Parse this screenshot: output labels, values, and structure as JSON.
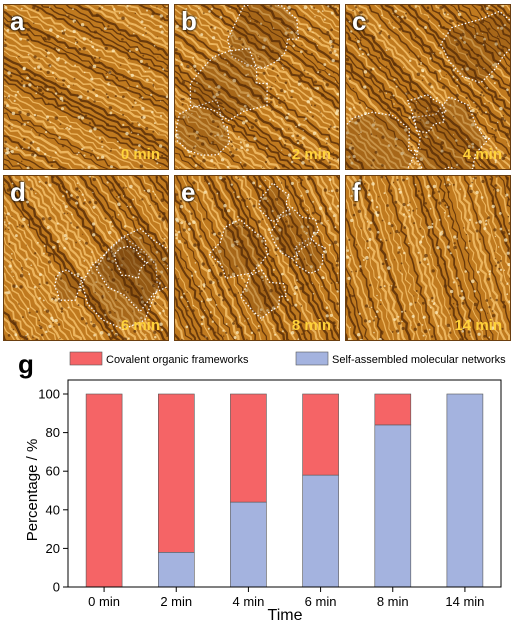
{
  "panels": [
    {
      "letter": "a",
      "time": "0 min",
      "self_assembled_fraction": 0.0
    },
    {
      "letter": "b",
      "time": "2 min",
      "self_assembled_fraction": 0.18
    },
    {
      "letter": "c",
      "time": "4 min",
      "self_assembled_fraction": 0.44
    },
    {
      "letter": "d",
      "time": "6 min",
      "self_assembled_fraction": 0.58
    },
    {
      "letter": "e",
      "time": "8 min",
      "self_assembled_fraction": 0.84
    },
    {
      "letter": "f",
      "time": "14 min",
      "self_assembled_fraction": 1.0
    }
  ],
  "chart_data": {
    "type": "bar",
    "panel_label": "g",
    "stacked": true,
    "categories": [
      "0 min",
      "2 min",
      "4 min",
      "6 min",
      "8 min",
      "14 min"
    ],
    "series": [
      {
        "name": "Self-assembled molecular networks",
        "color": "#a4b3df",
        "values": [
          0,
          18,
          44,
          58,
          84,
          100
        ]
      },
      {
        "name": "Covalent organic frameworks",
        "color": "#f56466",
        "values": [
          100,
          82,
          56,
          42,
          16,
          0
        ]
      }
    ],
    "xlabel": "Time",
    "ylabel": "Percentage  /  %",
    "ylim": [
      0,
      100
    ],
    "yticks": [
      0,
      20,
      40,
      60,
      80,
      100
    ],
    "grid": false,
    "legend_position": "top"
  },
  "colors": {
    "afm_dark": "#5a2f08",
    "afm_mid": "#c07a1f",
    "afm_light": "#f3c06a",
    "boundary": "#ffffff"
  }
}
